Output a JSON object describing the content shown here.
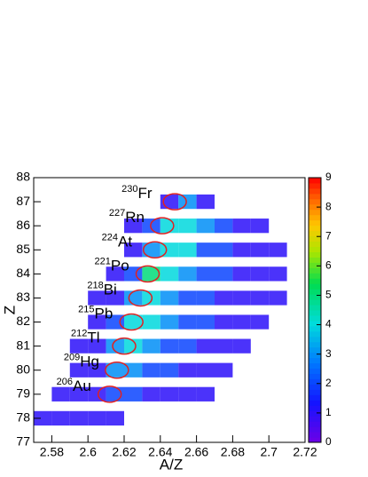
{
  "chart_data": {
    "type": "heatmap",
    "x_label": "A/Z",
    "y_label": "Z",
    "xlim": [
      2.57,
      2.72
    ],
    "xticks": [
      2.58,
      2.6,
      2.62,
      2.64,
      2.66,
      2.68,
      2.7,
      2.72
    ],
    "ylim": [
      77,
      88
    ],
    "yticks": [
      77,
      78,
      79,
      80,
      81,
      82,
      83,
      84,
      85,
      86,
      87,
      88
    ],
    "zlim": [
      0,
      9
    ],
    "zticks": [
      0,
      1,
      2,
      3,
      4,
      5,
      6,
      7,
      8,
      9
    ],
    "x": [
      2.575,
      2.585,
      2.595,
      2.605,
      2.615,
      2.625,
      2.635,
      2.645,
      2.655,
      2.665,
      2.675,
      2.685,
      2.695,
      2.705,
      2.715
    ],
    "y": [
      78,
      79,
      80,
      81,
      82,
      83,
      84,
      85,
      86,
      87
    ],
    "counts": [
      [
        1,
        1,
        1,
        1,
        1,
        0,
        0,
        0,
        0,
        0,
        0,
        0,
        0,
        0,
        0
      ],
      [
        0,
        1,
        1,
        1,
        2,
        2,
        1,
        1,
        1,
        1,
        0,
        0,
        0,
        0,
        0
      ],
      [
        0,
        0,
        1,
        1,
        3,
        3,
        2,
        2,
        1,
        1,
        1,
        0,
        0,
        0,
        0
      ],
      [
        0,
        0,
        1,
        1,
        3,
        4,
        3,
        2,
        2,
        1,
        1,
        1,
        0,
        0,
        0
      ],
      [
        0,
        0,
        0,
        1,
        2,
        4,
        4,
        3,
        2,
        2,
        1,
        1,
        1,
        0,
        0
      ],
      [
        0,
        0,
        0,
        1,
        1,
        3,
        4,
        3,
        2,
        2,
        1,
        1,
        1,
        1,
        0
      ],
      [
        0,
        0,
        0,
        0,
        1,
        2,
        5,
        4,
        3,
        2,
        2,
        1,
        1,
        1,
        0
      ],
      [
        0,
        0,
        0,
        0,
        0,
        1,
        3,
        4,
        4,
        2,
        2,
        1,
        1,
        1,
        0
      ],
      [
        0,
        0,
        0,
        0,
        0,
        1,
        2,
        4,
        4,
        3,
        2,
        1,
        1,
        0,
        0
      ],
      [
        0,
        0,
        0,
        0,
        0,
        0,
        0,
        1,
        3,
        1,
        0,
        0,
        0,
        0,
        0
      ]
    ],
    "annotations": [
      {
        "mass": 230,
        "element": "Fr",
        "x": 2.648,
        "z": 87
      },
      {
        "mass": 227,
        "element": "Rn",
        "x": 2.641,
        "z": 86
      },
      {
        "mass": 224,
        "element": "At",
        "x": 2.637,
        "z": 85
      },
      {
        "mass": 221,
        "element": "Po",
        "x": 2.633,
        "z": 84
      },
      {
        "mass": 218,
        "element": "Bi",
        "x": 2.629,
        "z": 83
      },
      {
        "mass": 215,
        "element": "Pb",
        "x": 2.624,
        "z": 82
      },
      {
        "mass": 212,
        "element": "Tl",
        "x": 2.62,
        "z": 81
      },
      {
        "mass": 209,
        "element": "Hg",
        "x": 2.616,
        "z": 80
      },
      {
        "mass": 206,
        "element": "Au",
        "x": 2.612,
        "z": 79
      }
    ]
  }
}
